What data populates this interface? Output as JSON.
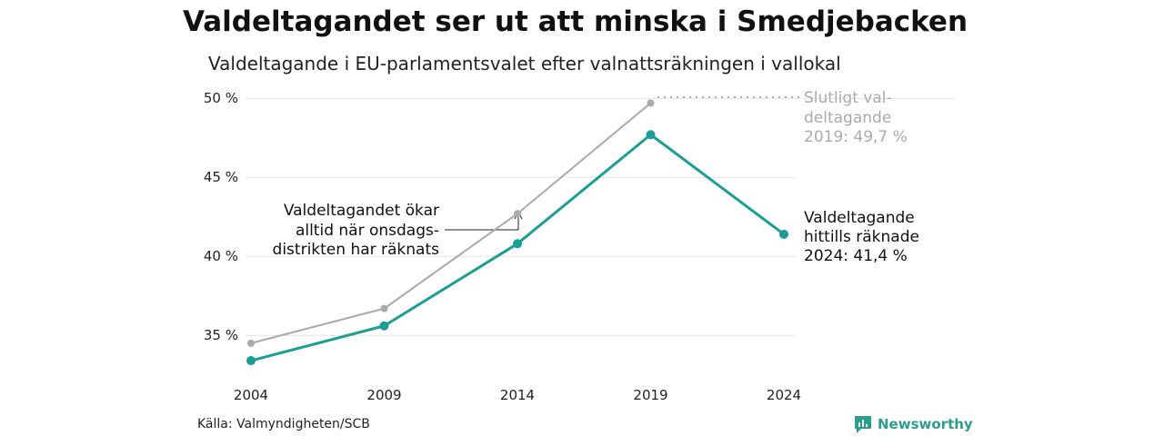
{
  "title": "Valdeltagandet ser ut att minska i Smedjebacken",
  "subtitle": "Valdeltagande i EU-parlamentsvalet efter valnattsräkningen i vallokal",
  "source": "Källa: Valmyndigheten/SCB",
  "brand": "Newsworthy",
  "colors": {
    "accent": "#1a9e96",
    "final": "#aaaaaa",
    "grid": "#e3e3e3",
    "brand": "#2a9d8f"
  },
  "chart_data": {
    "type": "line",
    "x": [
      "2004",
      "2009",
      "2014",
      "2019",
      "2024"
    ],
    "yticks": [
      "35 %",
      "40 %",
      "45 %",
      "50 %"
    ],
    "ytick_values": [
      35,
      40,
      45,
      50
    ],
    "ylim": [
      33,
      50.3
    ],
    "grid": true,
    "series": [
      {
        "name": "Slutligt valdeltagande",
        "values": [
          34.5,
          36.7,
          42.7,
          49.7,
          null
        ],
        "color": "#aaaaaa"
      },
      {
        "name": "Valdeltagande hittills räknade",
        "values": [
          33.4,
          35.6,
          40.8,
          47.7,
          41.4
        ],
        "color": "#1a9e96"
      }
    ],
    "annotations": {
      "final_label": [
        "Slutligt val-",
        "deltagande",
        "2019: 49,7 %"
      ],
      "current_label": [
        "Valdeltagande",
        "hittills räknade",
        "2024: 41,4 %"
      ],
      "note": [
        "Valdeltagandet ökar",
        "alltid när onsdags-",
        "distrikten har räknats"
      ]
    }
  }
}
